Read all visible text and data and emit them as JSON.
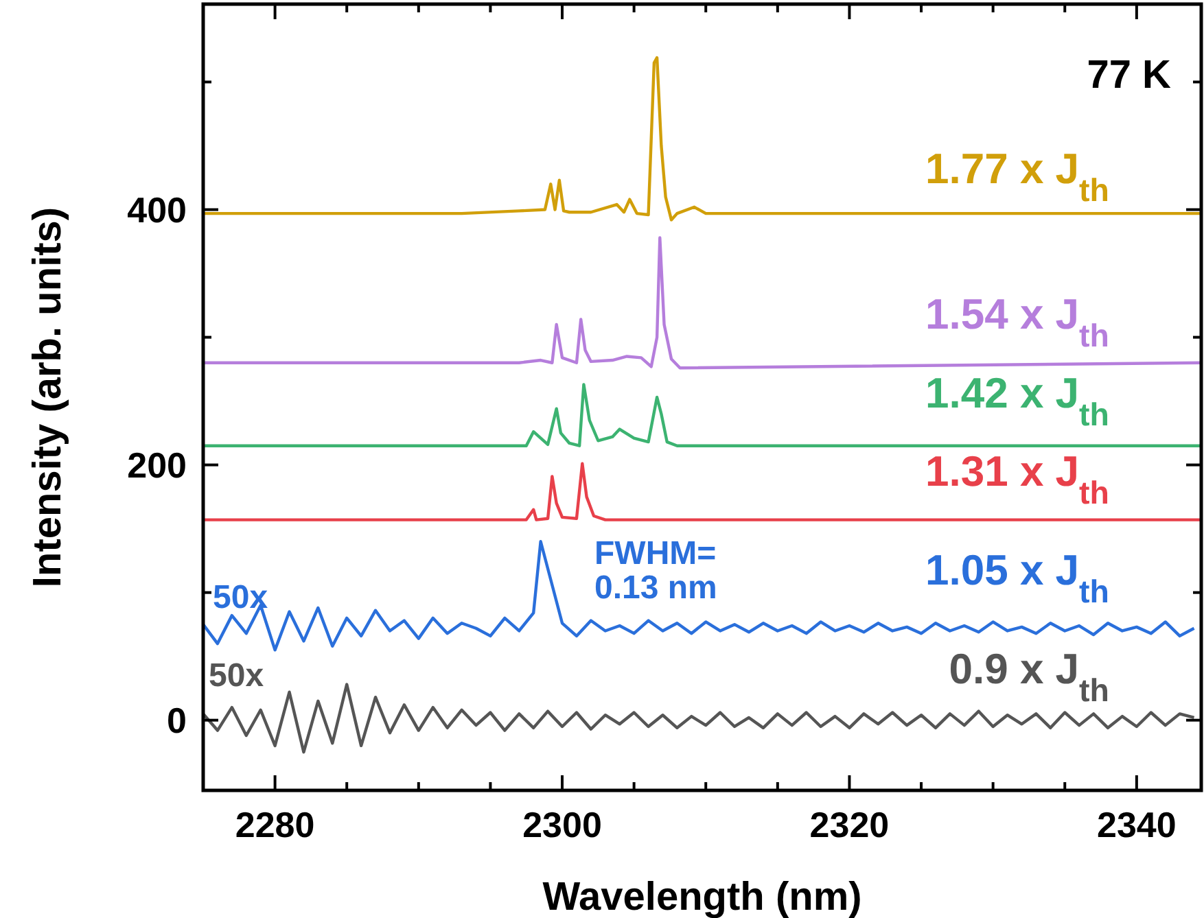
{
  "chart_data": {
    "type": "line",
    "xlabel": "Wavelength (nm)",
    "ylabel": "Intensity (arb. units)",
    "xlim": [
      2275,
      2344.5
    ],
    "ylim": [
      -55,
      561
    ],
    "xticks": [
      2280,
      {
        "value": 2285,
        "label": null
      },
      {
        "value": 2290,
        "label": null
      },
      {
        "value": 2295,
        "label": null
      },
      2300,
      {
        "value": 2305,
        "label": null
      },
      {
        "value": 2310,
        "label": null
      },
      {
        "value": 2315,
        "label": null
      },
      2320,
      {
        "value": 2325,
        "label": null
      },
      {
        "value": 2330,
        "label": null
      },
      {
        "value": 2335,
        "label": null
      },
      2340
    ],
    "yticks": [
      0,
      {
        "value": 100,
        "label": null
      },
      200,
      {
        "value": 300,
        "label": null
      },
      400,
      {
        "value": 500,
        "label": null
      }
    ],
    "grid": false,
    "legend": false,
    "marker": "none",
    "line_style": "solid",
    "annotations": [
      "77 K",
      "50x",
      "50x",
      "FWHM=\n0.13 nm"
    ],
    "series": [
      {
        "name": "1.77 x J$_{th}$",
        "color": "#d19f0a",
        "x": [
          2275,
          2293,
          2297,
          2298.8,
          2299.2,
          2299.5,
          2299.8,
          2300.1,
          2300.5,
          2302,
          2303.8,
          2304.3,
          2304.7,
          2305.2,
          2306,
          2306.4,
          2306.6,
          2306.9,
          2307.2,
          2307.6,
          2308,
          2309.2,
          2310,
          2312,
          2344.5
        ],
        "values": [
          397,
          397,
          399,
          400,
          420,
          400,
          423,
          399,
          398,
          398,
          404,
          398,
          408,
          397,
          396,
          515,
          519,
          450,
          410,
          392,
          397,
          402,
          397,
          397,
          397
        ]
      },
      {
        "name": "1.54 x J$_{th}$",
        "color": "#b57edc",
        "x": [
          2275,
          2297,
          2298.5,
          2299.3,
          2299.6,
          2300,
          2301,
          2301.3,
          2301.6,
          2302,
          2303.5,
          2304.5,
          2305.5,
          2306.2,
          2306.6,
          2306.8,
          2307.1,
          2307.6,
          2308.2,
          2344.5
        ],
        "values": [
          280,
          280,
          282,
          280,
          310,
          284,
          280,
          314,
          290,
          281,
          282,
          285,
          284,
          277,
          300,
          378,
          310,
          283,
          276,
          280
        ]
      },
      {
        "name": "1.42 x J$_{th}$",
        "color": "#3cb371",
        "x": [
          2275,
          2297.5,
          2298,
          2298.4,
          2299,
          2299.6,
          2299.9,
          2300.5,
          2301.2,
          2301.5,
          2301.9,
          2302.5,
          2303.5,
          2304,
          2305,
          2306,
          2306.6,
          2306.9,
          2307.3,
          2308,
          2344.5
        ],
        "values": [
          215,
          215,
          226,
          222,
          216,
          244,
          225,
          217,
          215,
          263,
          235,
          219,
          222,
          228,
          221,
          218,
          253,
          240,
          218,
          215,
          215
        ]
      },
      {
        "name": "1.31 x J$_{th}$",
        "color": "#e8404a",
        "x": [
          2275,
          2297.5,
          2298,
          2298.2,
          2299,
          2299.3,
          2299.6,
          2300,
          2301,
          2301.4,
          2301.7,
          2302.2,
          2303,
          2344.5
        ],
        "values": [
          157,
          157,
          165,
          157,
          158,
          191,
          170,
          159,
          158,
          201,
          175,
          160,
          157,
          157
        ]
      },
      {
        "name": "1.05 x J$_{th}$",
        "color": "#2a6fdb",
        "x": [
          2275,
          2276,
          2277,
          2278,
          2279,
          2280,
          2281,
          2282,
          2283,
          2284,
          2285,
          2286,
          2287,
          2288,
          2289,
          2290,
          2291,
          2292,
          2293,
          2294,
          2295,
          2296,
          2297,
          2298,
          2298.5,
          2300,
          2301,
          2302,
          2303,
          2304,
          2305,
          2306,
          2307,
          2308,
          2309,
          2310,
          2311,
          2312,
          2313,
          2314,
          2315,
          2316,
          2317,
          2318,
          2319,
          2320,
          2321,
          2322,
          2323,
          2324,
          2325,
          2326,
          2327,
          2328,
          2329,
          2330,
          2331,
          2332,
          2333,
          2334,
          2335,
          2336,
          2337,
          2338,
          2339,
          2340,
          2341,
          2342,
          2343,
          2344
        ],
        "values": [
          75,
          60,
          82,
          68,
          90,
          55,
          85,
          62,
          88,
          58,
          80,
          66,
          86,
          70,
          78,
          64,
          80,
          68,
          76,
          72,
          66,
          80,
          70,
          84,
          140,
          76,
          66,
          78,
          70,
          74,
          68,
          78,
          70,
          76,
          68,
          77,
          70,
          75,
          69,
          76,
          70,
          74,
          68,
          77,
          70,
          74,
          69,
          76,
          70,
          73,
          68,
          76,
          70,
          74,
          69,
          77,
          70,
          73,
          68,
          76,
          70,
          74,
          67,
          76,
          70,
          73,
          68,
          77,
          66,
          72
        ]
      },
      {
        "name": "0.9 x J$_{th}$",
        "color": "#555555",
        "x": [
          2275,
          2276,
          2277,
          2278,
          2279,
          2280,
          2281,
          2282,
          2283,
          2284,
          2285,
          2286,
          2287,
          2288,
          2289,
          2290,
          2291,
          2292,
          2293,
          2294,
          2295,
          2296,
          2297,
          2298,
          2299,
          2300,
          2301,
          2302,
          2303,
          2304,
          2305,
          2306,
          2307,
          2308,
          2309,
          2310,
          2311,
          2312,
          2313,
          2314,
          2315,
          2316,
          2317,
          2318,
          2319,
          2320,
          2321,
          2322,
          2323,
          2324,
          2325,
          2326,
          2327,
          2328,
          2329,
          2330,
          2331,
          2332,
          2333,
          2334,
          2335,
          2336,
          2337,
          2338,
          2339,
          2340,
          2341,
          2342,
          2343,
          2344
        ],
        "values": [
          5,
          -8,
          10,
          -12,
          8,
          -20,
          22,
          -25,
          15,
          -18,
          28,
          -20,
          18,
          -10,
          12,
          -8,
          10,
          -6,
          8,
          -4,
          6,
          -8,
          5,
          -6,
          7,
          -5,
          6,
          -7,
          4,
          -3,
          6,
          -5,
          4,
          -6,
          3,
          -4,
          6,
          -5,
          2,
          -6,
          5,
          -4,
          6,
          -5,
          3,
          -6,
          5,
          -3,
          6,
          -4,
          4,
          -6,
          5,
          -4,
          7,
          -5,
          4,
          -3,
          5,
          -6,
          6,
          -4,
          5,
          -6,
          3,
          -5,
          6,
          -4,
          5,
          2
        ]
      }
    ]
  }
}
